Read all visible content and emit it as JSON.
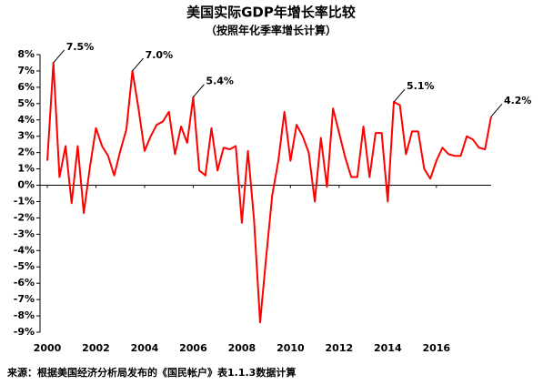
{
  "chart_data": {
    "type": "line",
    "title": "美国实际GDP年增长率比较",
    "subtitle": "（按照年化季率增长计算）",
    "source": "来源：根据美国经济分析局发布的《国民帐户》表1.1.3数据计算",
    "x": [
      2000,
      2000.25,
      2000.5,
      2000.75,
      2001,
      2001.25,
      2001.5,
      2001.75,
      2002,
      2002.25,
      2002.5,
      2002.75,
      2003,
      2003.25,
      2003.5,
      2003.75,
      2004,
      2004.25,
      2004.5,
      2004.75,
      2005,
      2005.25,
      2005.5,
      2005.75,
      2006,
      2006.25,
      2006.5,
      2006.75,
      2007,
      2007.25,
      2007.5,
      2007.75,
      2008,
      2008.25,
      2008.5,
      2008.75,
      2009,
      2009.25,
      2009.5,
      2009.75,
      2010,
      2010.25,
      2010.5,
      2010.75,
      2011,
      2011.25,
      2011.5,
      2011.75,
      2012,
      2012.25,
      2012.5,
      2012.75,
      2013,
      2013.25,
      2013.5,
      2013.75,
      2014,
      2014.25,
      2014.5,
      2014.75,
      2015,
      2015.25,
      2015.5,
      2015.75,
      2016,
      2016.25,
      2016.5,
      2016.75,
      2017,
      2017.25,
      2017.5,
      2017.75,
      2018,
      2018.25
    ],
    "series": [
      {
        "color": "#ff0000",
        "values": [
          1.5,
          7.5,
          0.5,
          2.4,
          -1.1,
          2.4,
          -1.7,
          1.1,
          3.5,
          2.4,
          1.8,
          0.6,
          2.1,
          3.4,
          7.0,
          4.7,
          2.1,
          3.0,
          3.7,
          3.9,
          4.5,
          1.9,
          3.6,
          2.6,
          5.4,
          0.9,
          0.6,
          3.5,
          0.9,
          2.3,
          2.2,
          2.4,
          -2.3,
          2.1,
          -2.1,
          -8.4,
          -4.4,
          -0.6,
          1.5,
          4.5,
          1.5,
          3.7,
          3.0,
          2.0,
          -1.0,
          2.9,
          -0.1,
          4.7,
          3.2,
          1.7,
          0.5,
          0.5,
          3.6,
          0.5,
          3.2,
          3.2,
          -1.0,
          5.1,
          4.9,
          1.9,
          3.3,
          3.3,
          1.0,
          0.4,
          1.5,
          2.3,
          1.9,
          1.8,
          1.8,
          3.0,
          2.8,
          2.3,
          2.2,
          4.2
        ]
      }
    ],
    "annotations": [
      {
        "text": "7.5%",
        "x": 2000.25,
        "y": 7.5
      },
      {
        "text": "7.0%",
        "x": 2003.5,
        "y": 7.0
      },
      {
        "text": "5.4%",
        "x": 2006,
        "y": 5.4
      },
      {
        "text": "5.1%",
        "x": 2014.25,
        "y": 5.1
      },
      {
        "text": "4.2%",
        "x": 2018.25,
        "y": 4.2
      }
    ],
    "xlim": [
      1999.7,
      2019.0
    ],
    "xticks": [
      2000,
      2002,
      2004,
      2006,
      2008,
      2010,
      2012,
      2014,
      2016
    ],
    "ylim": [
      -9,
      8
    ],
    "yticks": [
      {
        "value": 8,
        "label": "8%"
      },
      {
        "value": 7,
        "label": "7%"
      },
      {
        "value": 6,
        "label": "6%"
      },
      {
        "value": 5,
        "label": "5%"
      },
      {
        "value": 4,
        "label": "4%"
      },
      {
        "value": 3,
        "label": "3%"
      },
      {
        "value": 2,
        "label": "2%"
      },
      {
        "value": 1,
        "label": "1%"
      },
      {
        "value": 0,
        "label": "0%"
      },
      {
        "value": -1,
        "label": "-1%"
      },
      {
        "value": -2,
        "label": "-2%"
      },
      {
        "value": -3,
        "label": "-3%"
      },
      {
        "value": -4,
        "label": "-4%"
      },
      {
        "value": -5,
        "label": "-5%"
      },
      {
        "value": -6,
        "label": "-6%"
      },
      {
        "value": -7,
        "label": "-7%"
      },
      {
        "value": -8,
        "label": "-8%"
      },
      {
        "value": -9,
        "label": "-9%"
      }
    ],
    "grid": false
  }
}
